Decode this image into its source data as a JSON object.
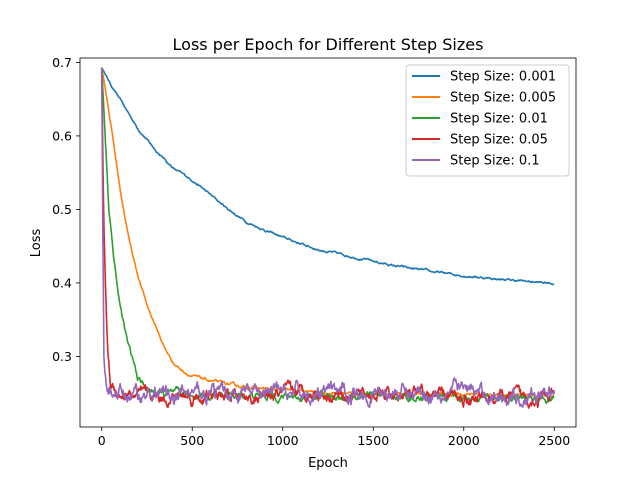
{
  "chart_data": {
    "type": "line",
    "title": "Loss per Epoch for Different Step Sizes",
    "xlabel": "Epoch",
    "ylabel": "Loss",
    "xlim": [
      -120,
      2620
    ],
    "ylim": [
      0.204,
      0.706
    ],
    "xticks": [
      0,
      500,
      1000,
      1500,
      2000,
      2500
    ],
    "yticks": [
      0.3,
      0.4,
      0.5,
      0.6,
      0.7
    ],
    "ytick_labels": [
      "0.3",
      "0.4",
      "0.5",
      "0.6",
      "0.7"
    ],
    "grid": false,
    "legend_position": "top-right",
    "series": [
      {
        "name": "Step Size: 0.001",
        "color": "#1f77b4",
        "noise": 0.0015,
        "points": [
          [
            0,
            0.693
          ],
          [
            50,
            0.67
          ],
          [
            100,
            0.65
          ],
          [
            200,
            0.61
          ],
          [
            300,
            0.58
          ],
          [
            400,
            0.555
          ],
          [
            500,
            0.54
          ],
          [
            600,
            0.52
          ],
          [
            700,
            0.5
          ],
          [
            800,
            0.483
          ],
          [
            900,
            0.472
          ],
          [
            1000,
            0.462
          ],
          [
            1200,
            0.445
          ],
          [
            1400,
            0.435
          ],
          [
            1600,
            0.424
          ],
          [
            1800,
            0.416
          ],
          [
            2000,
            0.41
          ],
          [
            2200,
            0.405
          ],
          [
            2400,
            0.401
          ],
          [
            2500,
            0.399
          ]
        ]
      },
      {
        "name": "Step Size: 0.005",
        "color": "#ff7f0e",
        "noise": 0.002,
        "points": [
          [
            0,
            0.693
          ],
          [
            30,
            0.65
          ],
          [
            60,
            0.6
          ],
          [
            100,
            0.53
          ],
          [
            150,
            0.46
          ],
          [
            200,
            0.41
          ],
          [
            250,
            0.37
          ],
          [
            300,
            0.34
          ],
          [
            350,
            0.31
          ],
          [
            400,
            0.29
          ],
          [
            450,
            0.28
          ],
          [
            500,
            0.273
          ],
          [
            600,
            0.267
          ],
          [
            700,
            0.262
          ],
          [
            800,
            0.258
          ],
          [
            1000,
            0.254
          ],
          [
            1200,
            0.251
          ],
          [
            1500,
            0.249
          ],
          [
            2000,
            0.248
          ],
          [
            2500,
            0.247
          ]
        ]
      },
      {
        "name": "Step Size: 0.01",
        "color": "#2ca02c",
        "noise": 0.005,
        "points": [
          [
            0,
            0.693
          ],
          [
            15,
            0.62
          ],
          [
            40,
            0.5
          ],
          [
            70,
            0.43
          ],
          [
            100,
            0.37
          ],
          [
            150,
            0.31
          ],
          [
            200,
            0.27
          ],
          [
            250,
            0.255
          ],
          [
            300,
            0.25
          ],
          [
            400,
            0.248
          ],
          [
            600,
            0.247
          ],
          [
            1000,
            0.246
          ],
          [
            1500,
            0.245
          ],
          [
            2000,
            0.244
          ],
          [
            2500,
            0.243
          ]
        ]
      },
      {
        "name": "Step Size: 0.05",
        "color": "#d62728",
        "noise": 0.009,
        "points": [
          [
            0,
            0.693
          ],
          [
            10,
            0.5
          ],
          [
            20,
            0.4
          ],
          [
            35,
            0.3
          ],
          [
            50,
            0.26
          ],
          [
            100,
            0.25
          ],
          [
            200,
            0.245
          ],
          [
            400,
            0.245
          ],
          [
            900,
            0.243
          ],
          [
            1100,
            0.252
          ],
          [
            1500,
            0.247
          ],
          [
            2000,
            0.245
          ],
          [
            2500,
            0.244
          ]
        ]
      },
      {
        "name": "Step Size: 0.1",
        "color": "#9467bd",
        "noise": 0.011,
        "points": [
          [
            0,
            0.693
          ],
          [
            5,
            0.5
          ],
          [
            12,
            0.3
          ],
          [
            25,
            0.25
          ],
          [
            100,
            0.248
          ],
          [
            600,
            0.25
          ],
          [
            1200,
            0.248
          ],
          [
            1400,
            0.252
          ],
          [
            1800,
            0.25
          ],
          [
            1900,
            0.258
          ],
          [
            2000,
            0.255
          ],
          [
            2100,
            0.248
          ],
          [
            2500,
            0.245
          ]
        ]
      }
    ]
  }
}
